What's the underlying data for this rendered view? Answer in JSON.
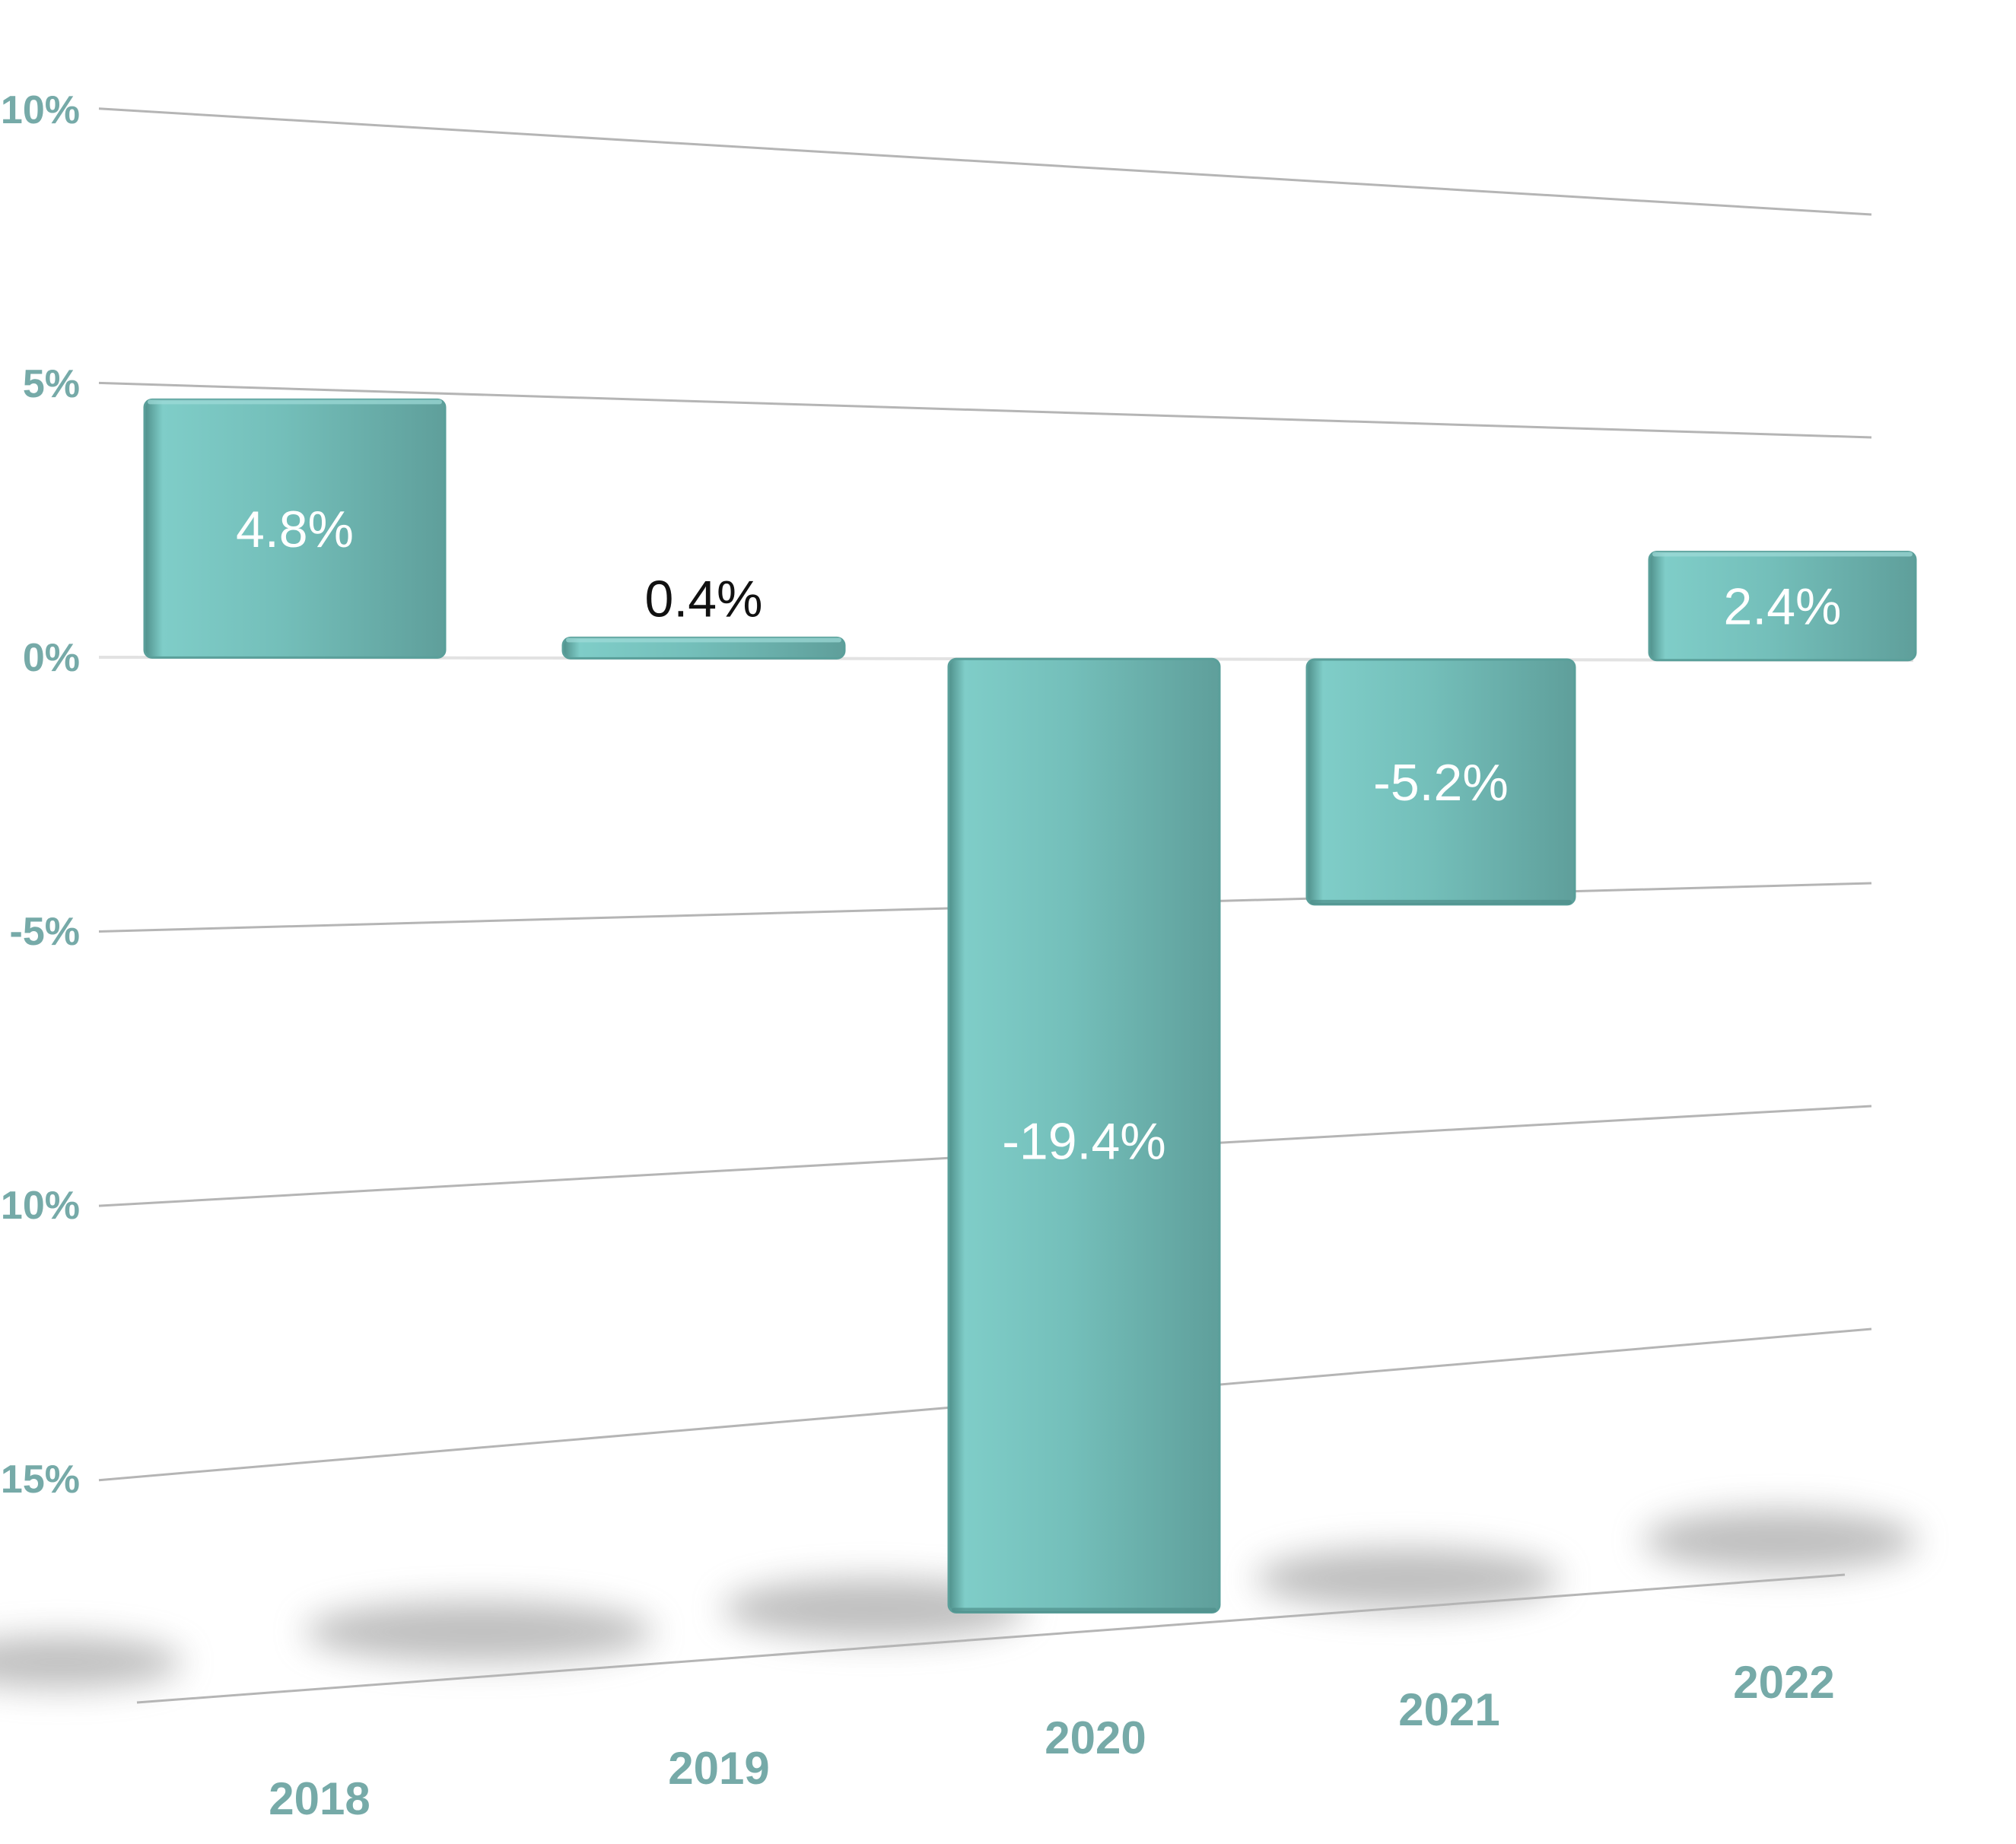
{
  "chart_data": {
    "type": "bar",
    "categories": [
      "2018",
      "2019",
      "2020",
      "2021",
      "2022"
    ],
    "values": [
      4.8,
      0.4,
      -19.4,
      -5.2,
      2.4
    ],
    "data_labels": [
      "4.8%",
      "0.4%",
      "-19.4%",
      "-5.2%",
      "2.4%"
    ],
    "ylim": [
      -19.4,
      10
    ],
    "yticks": [
      10,
      5,
      0,
      -5,
      -10,
      -15
    ],
    "ytick_labels": [
      "10%",
      "5%",
      "0%",
      "-5%",
      "-10%",
      "-15%"
    ],
    "title": "",
    "xlabel": "",
    "ylabel": "",
    "grid": true,
    "legend": "none",
    "style": "3d-perspective"
  },
  "colors": {
    "bar": "#74bfba",
    "bar_dark": "#5a9f9a",
    "axis_text": "#76aaa8",
    "grid": "#b5b5b5",
    "label_light": "#ffffff",
    "label_dark": "#111111"
  }
}
